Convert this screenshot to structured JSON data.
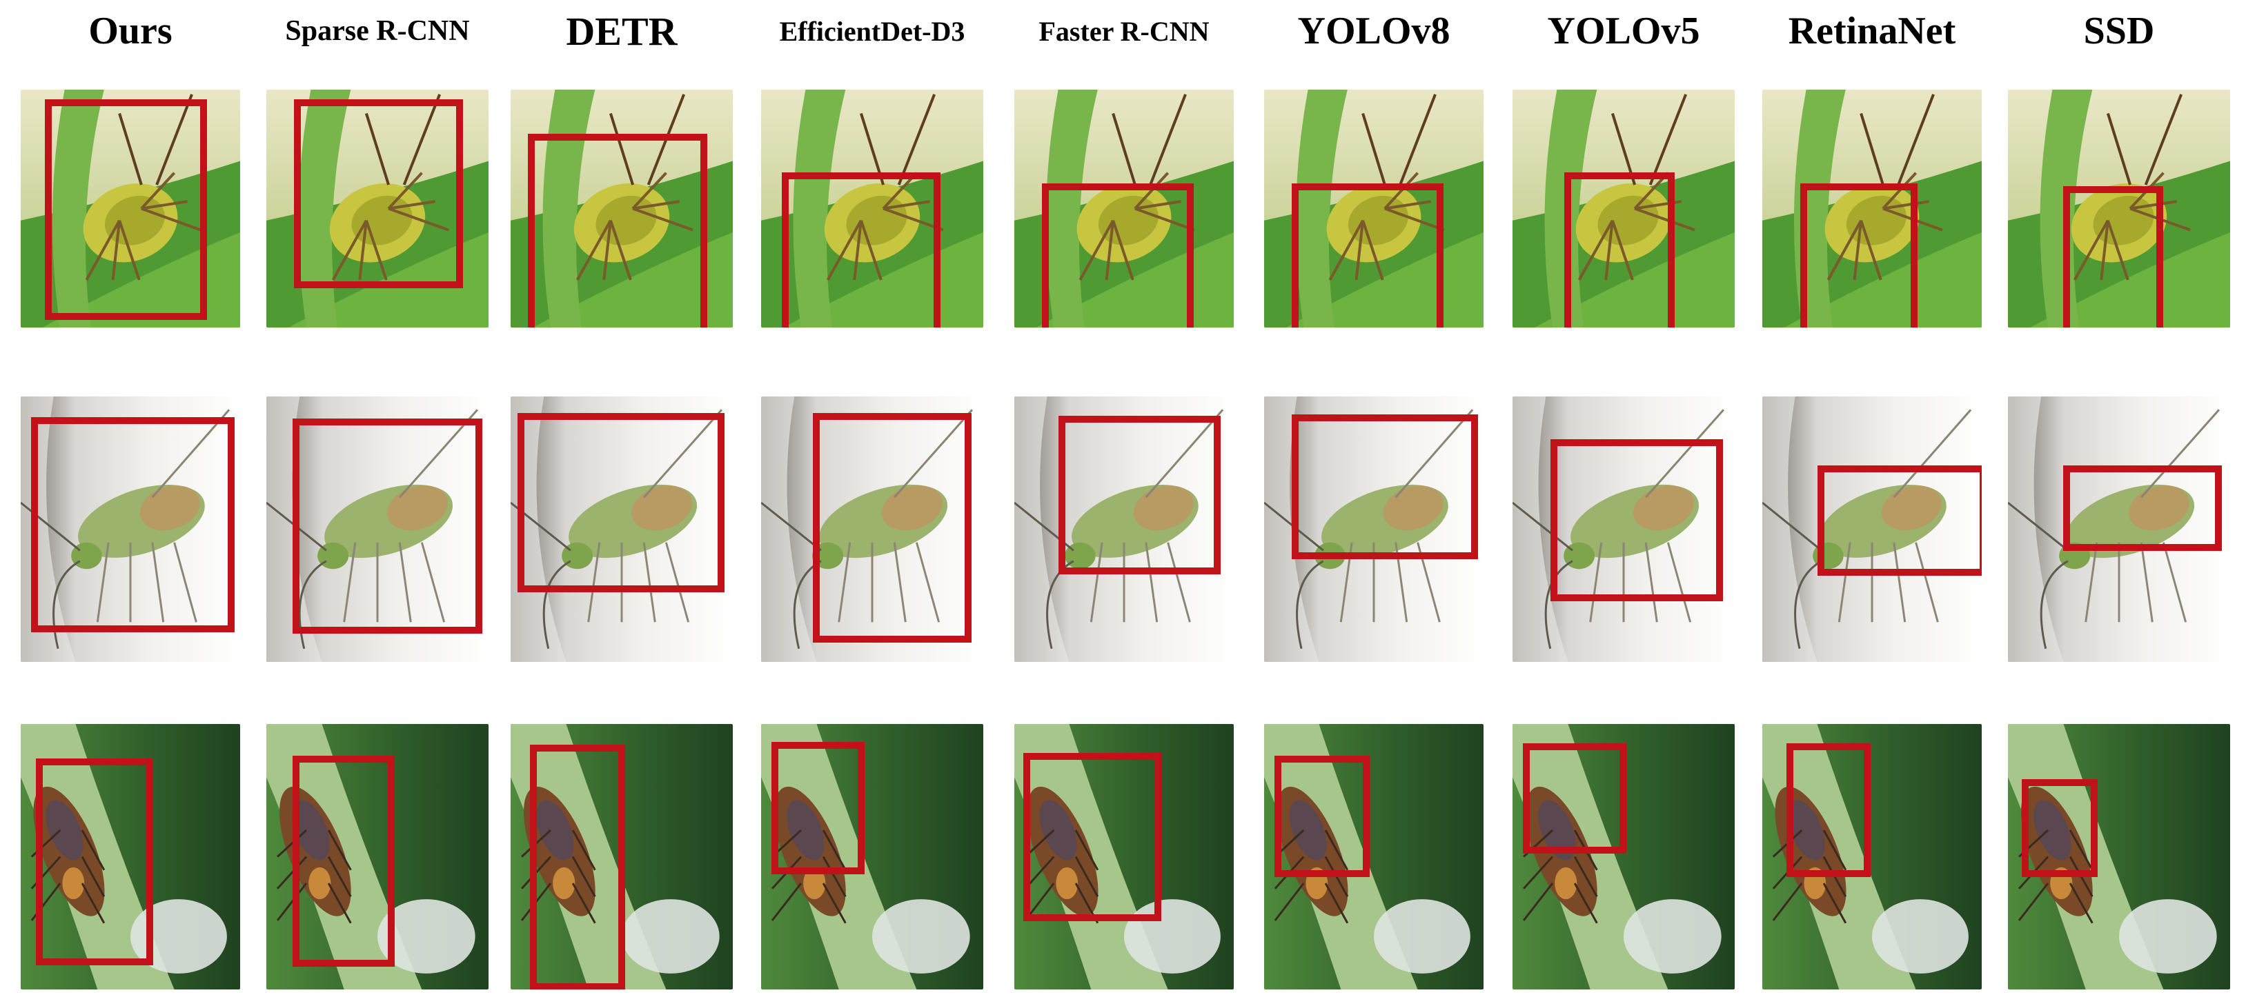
{
  "figure": {
    "box_color": "#c1121a",
    "columns": [
      {
        "label": "Ours"
      },
      {
        "label": "Sparse R-CNN"
      },
      {
        "label": "DETR"
      },
      {
        "label": "EfficientDet-D3"
      },
      {
        "label": "Faster R-CNN"
      },
      {
        "label": "YOLOv8"
      },
      {
        "label": "YOLOv5"
      },
      {
        "label": "RetinaNet"
      },
      {
        "label": "SSD"
      }
    ],
    "rows": [
      {
        "scene": "yellow-green-shield-bug-on-leaf"
      },
      {
        "scene": "green-plant-bug-on-white-fabric"
      },
      {
        "scene": "brown-bug-on-green-stem"
      }
    ]
  }
}
